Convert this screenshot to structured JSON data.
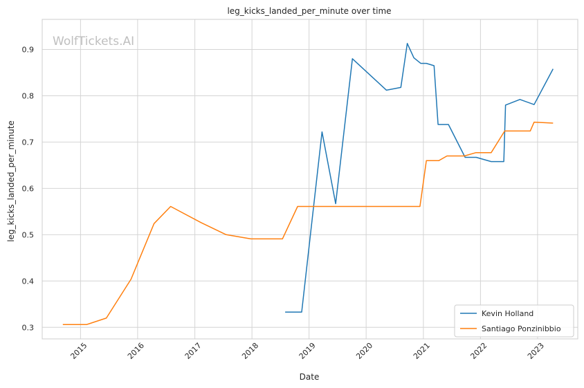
{
  "chart_data": {
    "type": "line",
    "title": "leg_kicks_landed_per_minute over time",
    "xlabel": "Date",
    "ylabel": "leg_kicks_landed_per_minute",
    "watermark": "WolfTickets.AI",
    "x_ticks": [
      "2015",
      "2016",
      "2017",
      "2018",
      "2019",
      "2020",
      "2021",
      "2022",
      "2023"
    ],
    "y_ticks": [
      "0.3",
      "0.4",
      "0.5",
      "0.6",
      "0.7",
      "0.8",
      "0.9"
    ],
    "xlim": [
      "2014-05-01",
      "2023-09-15"
    ],
    "ylim": [
      0.275,
      0.965
    ],
    "grid": true,
    "legend_position": "bottom-right",
    "series": [
      {
        "name": "Kevin Holland",
        "color": "#1f77b4",
        "points": [
          [
            "2018-08-01",
            0.333
          ],
          [
            "2018-11-15",
            0.333
          ],
          [
            "2019-03-25",
            0.722
          ],
          [
            "2019-06-20",
            0.567
          ],
          [
            "2019-10-05",
            0.88
          ],
          [
            "2020-05-10",
            0.812
          ],
          [
            "2020-08-10",
            0.818
          ],
          [
            "2020-09-20",
            0.913
          ],
          [
            "2020-11-01",
            0.882
          ],
          [
            "2020-12-15",
            0.87
          ],
          [
            "2021-01-20",
            0.87
          ],
          [
            "2021-03-10",
            0.865
          ],
          [
            "2021-04-05",
            0.738
          ],
          [
            "2021-06-10",
            0.738
          ],
          [
            "2021-09-25",
            0.667
          ],
          [
            "2021-12-05",
            0.667
          ],
          [
            "2022-03-10",
            0.658
          ],
          [
            "2022-05-30",
            0.658
          ],
          [
            "2022-06-10",
            0.78
          ],
          [
            "2022-09-10",
            0.792
          ],
          [
            "2022-12-10",
            0.781
          ],
          [
            "2023-04-10",
            0.858
          ]
        ]
      },
      {
        "name": "Santiago Ponzinibbio",
        "color": "#ff7f0e",
        "points": [
          [
            "2014-09-10",
            0.306
          ],
          [
            "2015-02-10",
            0.306
          ],
          [
            "2015-06-15",
            0.32
          ],
          [
            "2015-11-20",
            0.404
          ],
          [
            "2016-04-15",
            0.524
          ],
          [
            "2016-07-30",
            0.561
          ],
          [
            "2017-02-10",
            0.526
          ],
          [
            "2017-07-20",
            0.5
          ],
          [
            "2017-12-25",
            0.491
          ],
          [
            "2018-07-15",
            0.491
          ],
          [
            "2018-10-20",
            0.561
          ],
          [
            "2020-12-10",
            0.561
          ],
          [
            "2021-01-20",
            0.66
          ],
          [
            "2021-04-10",
            0.66
          ],
          [
            "2021-06-01",
            0.67
          ],
          [
            "2021-09-20",
            0.67
          ],
          [
            "2021-12-01",
            0.677
          ],
          [
            "2022-03-10",
            0.677
          ],
          [
            "2022-06-05",
            0.724
          ],
          [
            "2022-11-15",
            0.724
          ],
          [
            "2022-12-10",
            0.743
          ],
          [
            "2023-04-10",
            0.741
          ]
        ]
      }
    ]
  }
}
